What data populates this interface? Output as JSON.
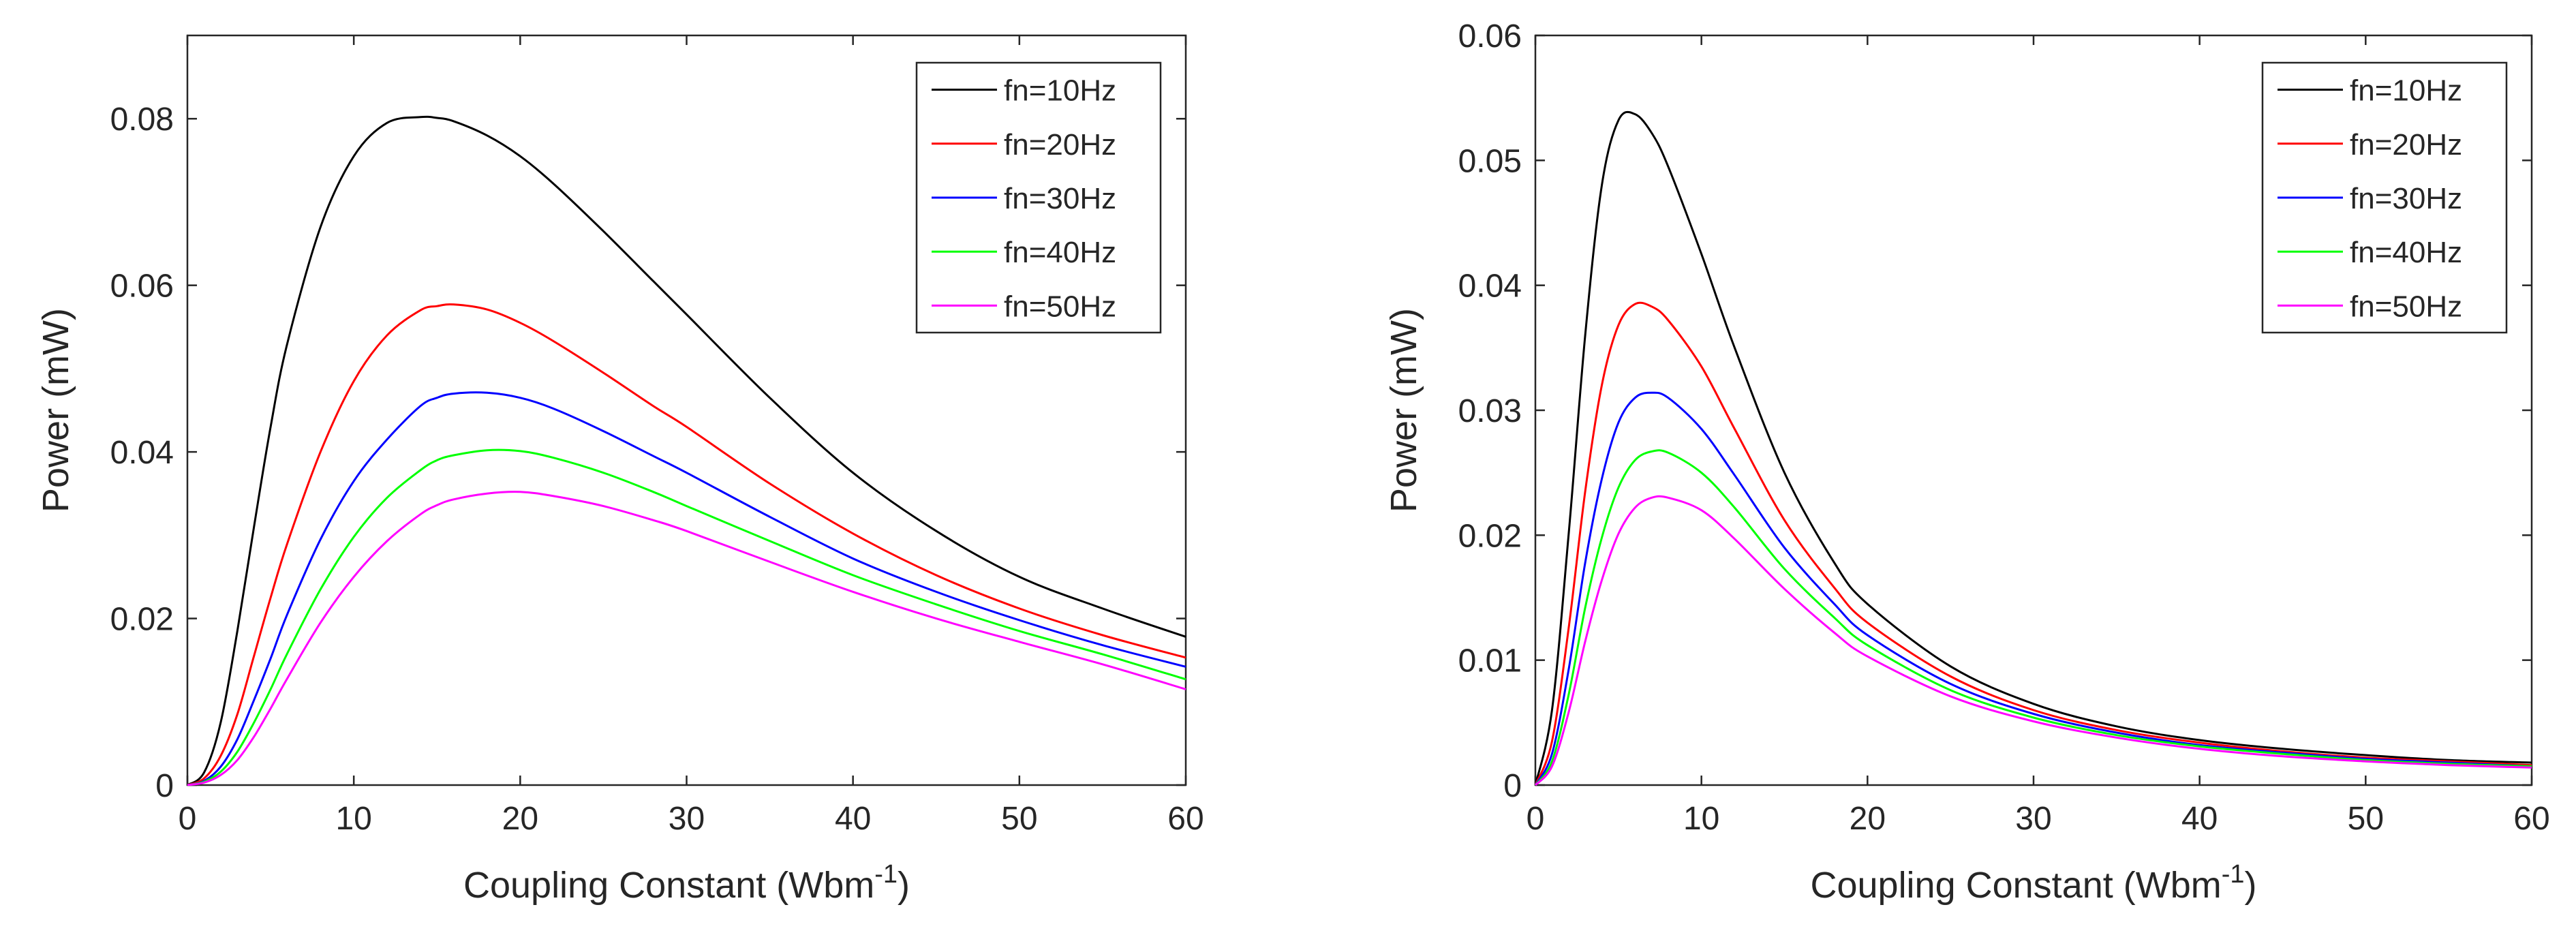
{
  "chart_data": [
    {
      "type": "line",
      "title": "",
      "xlabel": "Coupling Constant (Wbm",
      "xlabel_superscript": "-1",
      "xlabel_suffix": ")",
      "ylabel": "Power (mW)",
      "xlim": [
        0,
        60
      ],
      "ylim": [
        0,
        0.09
      ],
      "xticks": [
        0,
        10,
        20,
        30,
        40,
        50,
        60
      ],
      "yticks": [
        0,
        0.02,
        0.04,
        0.06,
        0.08
      ],
      "xtick_labels": [
        "0",
        "10",
        "20",
        "30",
        "40",
        "50",
        "60"
      ],
      "ytick_labels": [
        "0",
        "0.02",
        "0.04",
        "0.06",
        "0.08"
      ],
      "grid": false,
      "legend_position": "top-right",
      "x": [
        0,
        1,
        2,
        3,
        4,
        5,
        6,
        8,
        10,
        12,
        14,
        15,
        16,
        18,
        20,
        22,
        25,
        28,
        30,
        35,
        40,
        45,
        50,
        55,
        60
      ],
      "series": [
        {
          "name": "fn=10Hz",
          "color": "#000000",
          "values": [
            0,
            0.0015,
            0.0075,
            0.0185,
            0.031,
            0.043,
            0.053,
            0.067,
            0.0755,
            0.0795,
            0.0802,
            0.0801,
            0.0797,
            0.078,
            0.0755,
            0.0722,
            0.0665,
            0.0605,
            0.0565,
            0.0465,
            0.0375,
            0.0305,
            0.025,
            0.0212,
            0.0178
          ]
        },
        {
          "name": "fn=20Hz",
          "color": "#ff0000",
          "values": [
            0,
            0.0008,
            0.0035,
            0.0085,
            0.0155,
            0.0225,
            0.029,
            0.04,
            0.0485,
            0.054,
            0.057,
            0.0575,
            0.0577,
            0.0571,
            0.0555,
            0.0533,
            0.0495,
            0.0455,
            0.043,
            0.0362,
            0.0302,
            0.0252,
            0.0212,
            0.018,
            0.0153
          ]
        },
        {
          "name": "fn=30Hz",
          "color": "#0000ff",
          "values": [
            0,
            0.0005,
            0.0022,
            0.0055,
            0.0102,
            0.0152,
            0.0205,
            0.0295,
            0.0365,
            0.0415,
            0.0455,
            0.0465,
            0.047,
            0.0471,
            0.0465,
            0.0452,
            0.0425,
            0.0395,
            0.0375,
            0.0322,
            0.0272,
            0.0232,
            0.0198,
            0.0168,
            0.0142
          ]
        },
        {
          "name": "fn=40Hz",
          "color": "#00ff00",
          "values": [
            0,
            0.0004,
            0.0016,
            0.004,
            0.0075,
            0.0115,
            0.0158,
            0.0235,
            0.0298,
            0.0345,
            0.0378,
            0.039,
            0.0396,
            0.0402,
            0.0401,
            0.0393,
            0.0375,
            0.0352,
            0.0335,
            0.0293,
            0.0252,
            0.0217,
            0.0185,
            0.0157,
            0.0127
          ]
        },
        {
          "name": "fn=50Hz",
          "color": "#ff00ff",
          "values": [
            0,
            0.0003,
            0.0012,
            0.003,
            0.0058,
            0.0092,
            0.0128,
            0.0195,
            0.025,
            0.0293,
            0.0325,
            0.0336,
            0.0343,
            0.035,
            0.0352,
            0.0347,
            0.0335,
            0.0318,
            0.0305,
            0.0268,
            0.0232,
            0.02,
            0.0172,
            0.0145,
            0.0115
          ]
        }
      ]
    },
    {
      "type": "line",
      "title": "",
      "xlabel": "Coupling Constant (Wbm",
      "xlabel_superscript": "-1",
      "xlabel_suffix": ")",
      "ylabel": "Power (mW)",
      "xlim": [
        0,
        60
      ],
      "ylim": [
        0,
        0.06
      ],
      "xticks": [
        0,
        10,
        20,
        30,
        40,
        50,
        60
      ],
      "yticks": [
        0,
        0.01,
        0.02,
        0.03,
        0.04,
        0.05,
        0.06
      ],
      "xtick_labels": [
        "0",
        "10",
        "20",
        "30",
        "40",
        "50",
        "60"
      ],
      "ytick_labels": [
        "0",
        "0.01",
        "0.02",
        "0.03",
        "0.04",
        "0.05",
        "0.06"
      ],
      "grid": false,
      "legend_position": "top-right",
      "x": [
        0,
        1,
        2,
        3,
        4,
        5,
        6,
        7,
        8,
        10,
        12,
        15,
        18,
        20,
        25,
        30,
        35,
        40,
        45,
        50,
        55,
        60
      ],
      "series": [
        {
          "name": "fn=10Hz",
          "color": "#000000",
          "values": [
            0,
            0.006,
            0.02,
            0.036,
            0.048,
            0.0532,
            0.0537,
            0.0522,
            0.0495,
            0.0425,
            0.035,
            0.025,
            0.0178,
            0.0145,
            0.0095,
            0.0065,
            0.0047,
            0.0036,
            0.0029,
            0.0024,
            0.002,
            0.0018
          ]
        },
        {
          "name": "fn=20Hz",
          "color": "#ff0000",
          "values": [
            0,
            0.0035,
            0.0125,
            0.0235,
            0.032,
            0.0368,
            0.0385,
            0.0383,
            0.0372,
            0.0335,
            0.0285,
            0.0212,
            0.0158,
            0.013,
            0.0087,
            0.006,
            0.0044,
            0.0034,
            0.0027,
            0.0022,
            0.0019,
            0.0016
          ]
        },
        {
          "name": "fn=30Hz",
          "color": "#0000ff",
          "values": [
            0,
            0.0025,
            0.0092,
            0.0178,
            0.0245,
            0.029,
            0.031,
            0.0314,
            0.031,
            0.0285,
            0.0248,
            0.019,
            0.0145,
            0.012,
            0.0081,
            0.0057,
            0.0042,
            0.0032,
            0.0026,
            0.0021,
            0.0018,
            0.0015
          ]
        },
        {
          "name": "fn=40Hz",
          "color": "#00ff00",
          "values": [
            0,
            0.0019,
            0.0072,
            0.0142,
            0.0198,
            0.0238,
            0.026,
            0.0267,
            0.0266,
            0.025,
            0.0222,
            0.0173,
            0.0134,
            0.0112,
            0.0076,
            0.0054,
            0.004,
            0.0031,
            0.0025,
            0.002,
            0.0017,
            0.0015
          ]
        },
        {
          "name": "fn=50Hz",
          "color": "#ff00ff",
          "values": [
            0,
            0.0015,
            0.0058,
            0.0115,
            0.0164,
            0.0201,
            0.0222,
            0.023,
            0.023,
            0.022,
            0.0197,
            0.0157,
            0.0122,
            0.0103,
            0.0071,
            0.0051,
            0.0038,
            0.0029,
            0.0023,
            0.0019,
            0.0016,
            0.0014
          ]
        }
      ]
    }
  ]
}
